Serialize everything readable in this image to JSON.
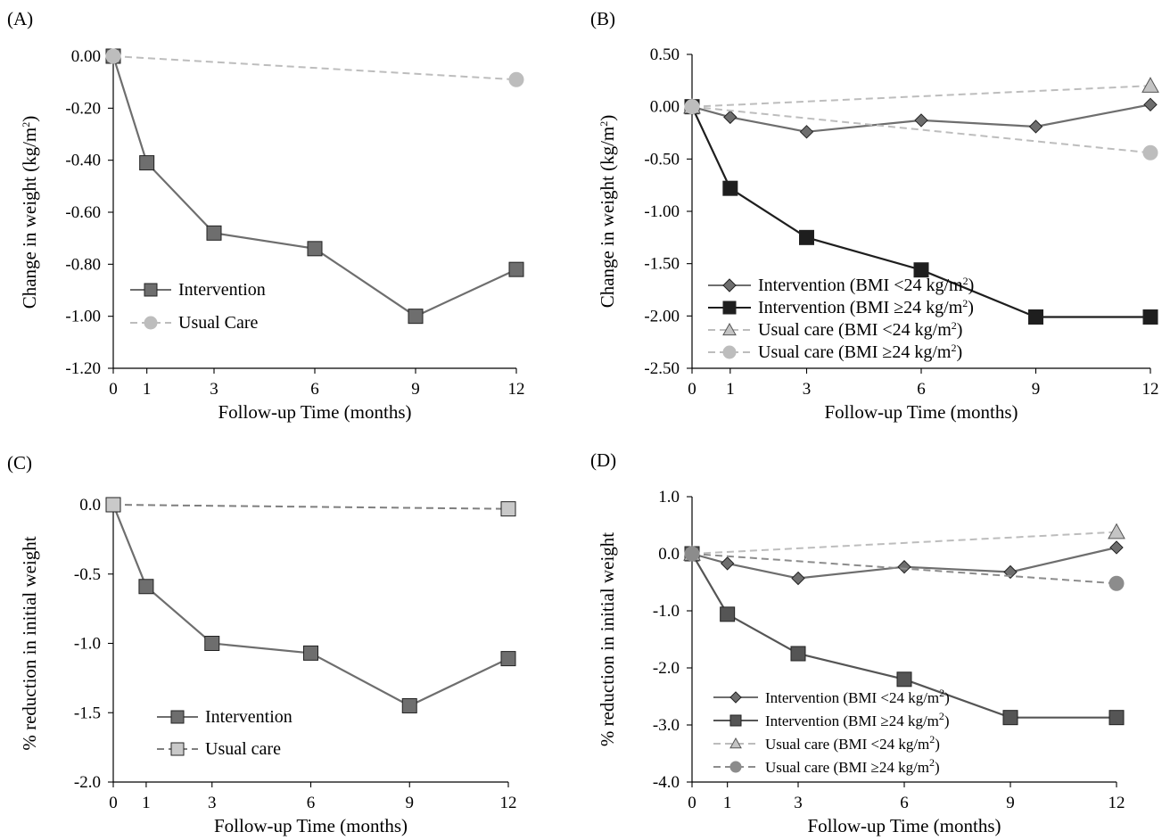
{
  "chart_data": [
    {
      "panel": "(A)",
      "type": "line",
      "categories": [
        "0",
        "1",
        "3",
        "6",
        "9",
        "12"
      ],
      "xlabel": "Follow-up Time (months)",
      "ylabel": "Change in weight (kg/m²)",
      "ylim": [
        -1.2,
        0.0
      ],
      "yticks": [
        "0.00",
        "-0.20",
        "-0.40",
        "-0.60",
        "-0.80",
        "-1.00",
        "-1.20"
      ],
      "legend_position": "bottom-left",
      "series": [
        {
          "name": "Intervention",
          "marker": "square",
          "dashed": false,
          "color": "#6e6e6e",
          "values": [
            0.0,
            -0.41,
            -0.68,
            -0.74,
            -1.0,
            -0.82
          ]
        },
        {
          "name": "Usual Care",
          "marker": "circle",
          "dashed": true,
          "color": "#bdbdbd",
          "values": [
            0.0,
            null,
            null,
            null,
            null,
            -0.09
          ]
        }
      ]
    },
    {
      "panel": "(B)",
      "type": "line",
      "categories": [
        "0",
        "1",
        "3",
        "6",
        "9",
        "12"
      ],
      "xlabel": "Follow-up Time (months)",
      "ylabel": "Change in weight (kg/m²)",
      "ylim": [
        -2.5,
        0.5
      ],
      "yticks": [
        "0.50",
        "0.00",
        "-0.50",
        "-1.00",
        "-1.50",
        "-2.00",
        "-2.50"
      ],
      "legend_position": "bottom-left",
      "series": [
        {
          "name": "Intervention (BMI <24 kg/m²)",
          "marker": "diamond",
          "dashed": false,
          "color": "#6e6e6e",
          "values": [
            0.0,
            -0.1,
            -0.24,
            -0.13,
            -0.19,
            0.02
          ]
        },
        {
          "name": "Intervention (BMI ≥24 kg/m²)",
          "marker": "square",
          "dashed": false,
          "color": "#1e1e1e",
          "values": [
            0.0,
            -0.78,
            -1.25,
            -1.56,
            -2.01,
            -2.01
          ]
        },
        {
          "name": "Usual care (BMI <24 kg/m²)",
          "marker": "triangle",
          "dashed": true,
          "color": "#bdbdbd",
          "values": [
            0.0,
            null,
            null,
            null,
            null,
            0.2
          ]
        },
        {
          "name": "Usual care (BMI ≥24 kg/m²)",
          "marker": "circle",
          "dashed": true,
          "color": "#bdbdbd",
          "values": [
            0.0,
            null,
            null,
            null,
            null,
            -0.44
          ]
        }
      ]
    },
    {
      "panel": "(C)",
      "type": "line",
      "categories": [
        "0",
        "1",
        "3",
        "6",
        "9",
        "12"
      ],
      "xlabel": "Follow-up Time (months)",
      "ylabel": "% reduction in initial weight",
      "ylim": [
        -2.0,
        0.0
      ],
      "yticks": [
        "0.0",
        "-0.5",
        "-1.0",
        "-1.5",
        "-2.0"
      ],
      "legend_position": "bottom-left",
      "series": [
        {
          "name": "Intervention",
          "marker": "square",
          "dashed": false,
          "color": "#6e6e6e",
          "values": [
            0.0,
            -0.59,
            -1.0,
            -1.07,
            -1.45,
            -1.11
          ]
        },
        {
          "name": "Usual care",
          "marker": "square-light",
          "dashed": true,
          "color": "#7f7f7f",
          "values": [
            0.0,
            null,
            null,
            null,
            null,
            -0.03
          ]
        }
      ]
    },
    {
      "panel": "(D)",
      "type": "line",
      "categories": [
        "0",
        "1",
        "3",
        "6",
        "9",
        "12"
      ],
      "xlabel": "Follow-up Time (months)",
      "ylabel": "% reduction in initial weight",
      "ylim": [
        -4.0,
        1.0
      ],
      "yticks": [
        "1.0",
        "0.0",
        "-1.0",
        "-2.0",
        "-3.0",
        "-4.0"
      ],
      "legend_position": "bottom-left",
      "series": [
        {
          "name": "Intervention (BMI <24 kg/m²)",
          "marker": "diamond",
          "dashed": false,
          "color": "#6e6e6e",
          "values": [
            0.0,
            -0.17,
            -0.43,
            -0.23,
            -0.32,
            0.11
          ]
        },
        {
          "name": "Intervention (BMI ≥24 kg/m²)",
          "marker": "square",
          "dashed": false,
          "color": "#555555",
          "values": [
            0.0,
            -1.06,
            -1.75,
            -2.2,
            -2.87,
            -2.87
          ]
        },
        {
          "name": "Usual care (BMI <24 kg/m²)",
          "marker": "triangle",
          "dashed": true,
          "color": "#bdbdbd",
          "values": [
            0.0,
            null,
            null,
            null,
            null,
            0.38
          ]
        },
        {
          "name": "Usual care (BMI ≥24 kg/m²)",
          "marker": "circle",
          "dashed": true,
          "color": "#8c8c8c",
          "values": [
            0.0,
            null,
            null,
            null,
            null,
            -0.52
          ]
        }
      ]
    }
  ]
}
